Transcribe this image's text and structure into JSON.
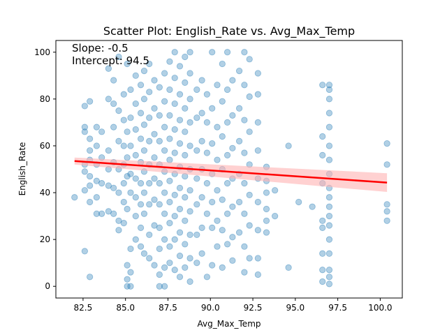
{
  "chart_data": {
    "type": "scatter",
    "title": "Scatter Plot: English_Rate vs. Avg_Max_Temp",
    "xlabel": "Avg_Max_Temp",
    "ylabel": "English_Rate",
    "xlim": [
      80.9,
      101.3
    ],
    "ylim": [
      -5,
      105
    ],
    "xticks": [
      82.5,
      85.0,
      87.5,
      90.0,
      92.5,
      95.0,
      97.5,
      100.0
    ],
    "xtick_labels": [
      "82.5",
      "85.0",
      "87.5",
      "90.0",
      "92.5",
      "95.0",
      "97.5",
      "100.0"
    ],
    "yticks": [
      0,
      20,
      40,
      60,
      80,
      100
    ],
    "ytick_labels": [
      "0",
      "20",
      "40",
      "60",
      "80",
      "100"
    ],
    "annotations": [
      "Slope: -0.5",
      "Intercept: 94.5"
    ],
    "regression": {
      "slope": -0.5,
      "intercept": 94.5,
      "x_range": [
        82.0,
        100.4
      ],
      "ci_halfwidth_start": 1.5,
      "ci_halfwidth_end": 4.0
    },
    "grid": false,
    "colors": {
      "points": "#1f77b4",
      "regression_line": "#ff0000",
      "confidence_band": "#ffb3b3"
    },
    "point_alpha": 0.35,
    "series": [
      {
        "points": [
          [
            82.0,
            38
          ],
          [
            82.6,
            77
          ],
          [
            82.6,
            68
          ],
          [
            82.6,
            66
          ],
          [
            82.6,
            52
          ],
          [
            82.6,
            49
          ],
          [
            82.6,
            41
          ],
          [
            82.6,
            15
          ],
          [
            82.9,
            4
          ],
          [
            82.9,
            79
          ],
          [
            82.9,
            63
          ],
          [
            82.9,
            58
          ],
          [
            82.9,
            54
          ],
          [
            82.9,
            47
          ],
          [
            82.9,
            43
          ],
          [
            82.9,
            36
          ],
          [
            83.3,
            68
          ],
          [
            83.3,
            60
          ],
          [
            83.3,
            52
          ],
          [
            83.3,
            45
          ],
          [
            83.3,
            38
          ],
          [
            83.3,
            31
          ],
          [
            83.6,
            66
          ],
          [
            83.6,
            55
          ],
          [
            83.6,
            44
          ],
          [
            83.6,
            31
          ],
          [
            84.0,
            93
          ],
          [
            84.0,
            80
          ],
          [
            84.0,
            58
          ],
          [
            84.0,
            50
          ],
          [
            84.0,
            43
          ],
          [
            84.0,
            32
          ],
          [
            84.3,
            88
          ],
          [
            84.3,
            78
          ],
          [
            84.3,
            68
          ],
          [
            84.3,
            53
          ],
          [
            84.3,
            42
          ],
          [
            84.3,
            31
          ],
          [
            84.6,
            98
          ],
          [
            84.6,
            75
          ],
          [
            84.6,
            62
          ],
          [
            84.6,
            50
          ],
          [
            84.6,
            40
          ],
          [
            84.6,
            28
          ],
          [
            84.6,
            24
          ],
          [
            84.9,
            82
          ],
          [
            84.9,
            71
          ],
          [
            84.9,
            60
          ],
          [
            84.9,
            52
          ],
          [
            84.9,
            44
          ],
          [
            84.9,
            36
          ],
          [
            84.9,
            27
          ],
          [
            85.1,
            95
          ],
          [
            85.1,
            66
          ],
          [
            85.1,
            55
          ],
          [
            85.1,
            47
          ],
          [
            85.1,
            33
          ],
          [
            85.1,
            9
          ],
          [
            85.1,
            3
          ],
          [
            85.1,
            0
          ],
          [
            85.3,
            84
          ],
          [
            85.3,
            72
          ],
          [
            85.3,
            60
          ],
          [
            85.3,
            48
          ],
          [
            85.3,
            40
          ],
          [
            85.3,
            16
          ],
          [
            85.3,
            6
          ],
          [
            85.3,
            0
          ],
          [
            85.6,
            90
          ],
          [
            85.6,
            78
          ],
          [
            85.6,
            67
          ],
          [
            85.6,
            56
          ],
          [
            85.6,
            46
          ],
          [
            85.6,
            38
          ],
          [
            85.6,
            30
          ],
          [
            85.6,
            20
          ],
          [
            85.9,
            86
          ],
          [
            85.9,
            74
          ],
          [
            85.9,
            63
          ],
          [
            85.9,
            53
          ],
          [
            85.9,
            44
          ],
          [
            85.9,
            35
          ],
          [
            85.9,
            25
          ],
          [
            85.9,
            17
          ],
          [
            86.1,
            92
          ],
          [
            86.1,
            80
          ],
          [
            86.1,
            69
          ],
          [
            86.1,
            58
          ],
          [
            86.1,
            49
          ],
          [
            86.1,
            40
          ],
          [
            86.1,
            31
          ],
          [
            86.1,
            14
          ],
          [
            86.4,
            95
          ],
          [
            86.4,
            83
          ],
          [
            86.4,
            72
          ],
          [
            86.4,
            62
          ],
          [
            86.4,
            52
          ],
          [
            86.4,
            44
          ],
          [
            86.4,
            35
          ],
          [
            86.4,
            22
          ],
          [
            86.4,
            12
          ],
          [
            86.7,
            88
          ],
          [
            86.7,
            76
          ],
          [
            86.7,
            65
          ],
          [
            86.7,
            55
          ],
          [
            86.7,
            46
          ],
          [
            86.7,
            37
          ],
          [
            86.7,
            26
          ],
          [
            86.7,
            9
          ],
          [
            87.0,
            85
          ],
          [
            87.0,
            73
          ],
          [
            87.0,
            62
          ],
          [
            87.0,
            52
          ],
          [
            87.0,
            44
          ],
          [
            87.0,
            35
          ],
          [
            87.0,
            25
          ],
          [
            87.0,
            16
          ],
          [
            87.0,
            5
          ],
          [
            87.0,
            0
          ],
          [
            87.3,
            91
          ],
          [
            87.3,
            79
          ],
          [
            87.3,
            68
          ],
          [
            87.3,
            58
          ],
          [
            87.3,
            49
          ],
          [
            87.3,
            40
          ],
          [
            87.3,
            31
          ],
          [
            87.3,
            20
          ],
          [
            87.3,
            8
          ],
          [
            87.3,
            0
          ],
          [
            87.6,
            96
          ],
          [
            87.6,
            84
          ],
          [
            87.6,
            73
          ],
          [
            87.6,
            63
          ],
          [
            87.6,
            54
          ],
          [
            87.6,
            45
          ],
          [
            87.6,
            36
          ],
          [
            87.6,
            27
          ],
          [
            87.6,
            17
          ],
          [
            87.6,
            10
          ],
          [
            87.9,
            100
          ],
          [
            87.9,
            89
          ],
          [
            87.9,
            78
          ],
          [
            87.9,
            67
          ],
          [
            87.9,
            57
          ],
          [
            87.9,
            48
          ],
          [
            87.9,
            39
          ],
          [
            87.9,
            30
          ],
          [
            87.9,
            20
          ],
          [
            87.9,
            7
          ],
          [
            88.2,
            94
          ],
          [
            88.2,
            82
          ],
          [
            88.2,
            71
          ],
          [
            88.2,
            61
          ],
          [
            88.2,
            51
          ],
          [
            88.2,
            42
          ],
          [
            88.2,
            33
          ],
          [
            88.2,
            23
          ],
          [
            88.2,
            13
          ],
          [
            88.2,
            4
          ],
          [
            88.5,
            98
          ],
          [
            88.5,
            87
          ],
          [
            88.5,
            76
          ],
          [
            88.5,
            66
          ],
          [
            88.5,
            56
          ],
          [
            88.5,
            47
          ],
          [
            88.5,
            38
          ],
          [
            88.5,
            28
          ],
          [
            88.5,
            18
          ],
          [
            88.5,
            8
          ],
          [
            88.8,
            100
          ],
          [
            88.8,
            91
          ],
          [
            88.8,
            80
          ],
          [
            88.8,
            70
          ],
          [
            88.8,
            60
          ],
          [
            88.8,
            50
          ],
          [
            88.8,
            41
          ],
          [
            88.8,
            32
          ],
          [
            88.8,
            22
          ],
          [
            88.8,
            12
          ],
          [
            88.8,
            2
          ],
          [
            89.2,
            84
          ],
          [
            89.2,
            72
          ],
          [
            89.2,
            58
          ],
          [
            89.2,
            46
          ],
          [
            89.2,
            35
          ],
          [
            89.2,
            22
          ],
          [
            89.2,
            10
          ],
          [
            89.5,
            88
          ],
          [
            89.5,
            74
          ],
          [
            89.5,
            62
          ],
          [
            89.5,
            50
          ],
          [
            89.5,
            38
          ],
          [
            89.5,
            25
          ],
          [
            89.5,
            14
          ],
          [
            89.8,
            82
          ],
          [
            89.8,
            70
          ],
          [
            89.8,
            57
          ],
          [
            89.8,
            44
          ],
          [
            89.8,
            31
          ],
          [
            89.8,
            4
          ],
          [
            90.1,
            100
          ],
          [
            90.1,
            76
          ],
          [
            90.1,
            61
          ],
          [
            90.1,
            48
          ],
          [
            90.1,
            36
          ],
          [
            90.1,
            25
          ],
          [
            90.1,
            9
          ],
          [
            90.4,
            86
          ],
          [
            90.4,
            68
          ],
          [
            90.4,
            54
          ],
          [
            90.4,
            41
          ],
          [
            90.4,
            28
          ],
          [
            90.4,
            17
          ],
          [
            90.7,
            95
          ],
          [
            90.7,
            79
          ],
          [
            90.7,
            64
          ],
          [
            90.7,
            50
          ],
          [
            90.7,
            37
          ],
          [
            90.7,
            24
          ],
          [
            90.7,
            8
          ],
          [
            91.0,
            100
          ],
          [
            91.0,
            84
          ],
          [
            91.0,
            70
          ],
          [
            91.0,
            56
          ],
          [
            91.0,
            44
          ],
          [
            91.0,
            31
          ],
          [
            91.0,
            18
          ],
          [
            91.3,
            88
          ],
          [
            91.3,
            73
          ],
          [
            91.3,
            59
          ],
          [
            91.3,
            46
          ],
          [
            91.3,
            34
          ],
          [
            91.3,
            21
          ],
          [
            91.3,
            11
          ],
          [
            91.7,
            92
          ],
          [
            91.7,
            76
          ],
          [
            91.7,
            62
          ],
          [
            91.7,
            48
          ],
          [
            91.7,
            36
          ],
          [
            91.7,
            23
          ],
          [
            92.0,
            100
          ],
          [
            92.0,
            86
          ],
          [
            92.0,
            71
          ],
          [
            92.0,
            57
          ],
          [
            92.0,
            44
          ],
          [
            92.0,
            31
          ],
          [
            92.0,
            17
          ],
          [
            92.0,
            6
          ],
          [
            92.3,
            97
          ],
          [
            92.3,
            81
          ],
          [
            92.3,
            66
          ],
          [
            92.3,
            52
          ],
          [
            92.3,
            39
          ],
          [
            92.3,
            26
          ],
          [
            92.3,
            12
          ],
          [
            92.8,
            91
          ],
          [
            92.8,
            82
          ],
          [
            92.8,
            70
          ],
          [
            92.8,
            58
          ],
          [
            92.8,
            46
          ],
          [
            92.8,
            36
          ],
          [
            92.8,
            24
          ],
          [
            92.8,
            12
          ],
          [
            92.8,
            5
          ],
          [
            93.3,
            51
          ],
          [
            93.3,
            45
          ],
          [
            93.3,
            40
          ],
          [
            93.3,
            33
          ],
          [
            93.3,
            28
          ],
          [
            93.3,
            23
          ],
          [
            93.8,
            41
          ],
          [
            93.8,
            30
          ],
          [
            94.6,
            60
          ],
          [
            94.6,
            8
          ],
          [
            95.2,
            36
          ],
          [
            96.0,
            34
          ],
          [
            96.6,
            86
          ],
          [
            96.6,
            64
          ],
          [
            96.6,
            56
          ],
          [
            96.6,
            44
          ],
          [
            96.6,
            28
          ],
          [
            96.6,
            25
          ],
          [
            96.6,
            14
          ],
          [
            96.6,
            7
          ],
          [
            96.6,
            2
          ],
          [
            97.0,
            86
          ],
          [
            97.0,
            84
          ],
          [
            97.0,
            80
          ],
          [
            97.0,
            74
          ],
          [
            97.0,
            68
          ],
          [
            97.0,
            60
          ],
          [
            97.0,
            54
          ],
          [
            97.0,
            48
          ],
          [
            97.0,
            42
          ],
          [
            97.0,
            38
          ],
          [
            97.0,
            34
          ],
          [
            97.0,
            30
          ],
          [
            97.0,
            26
          ],
          [
            97.0,
            20
          ],
          [
            97.0,
            14
          ],
          [
            97.0,
            7
          ],
          [
            97.0,
            4
          ],
          [
            97.0,
            1
          ],
          [
            100.4,
            61
          ],
          [
            100.4,
            52
          ],
          [
            100.4,
            35
          ],
          [
            100.4,
            32
          ],
          [
            100.4,
            28
          ]
        ]
      }
    ]
  }
}
